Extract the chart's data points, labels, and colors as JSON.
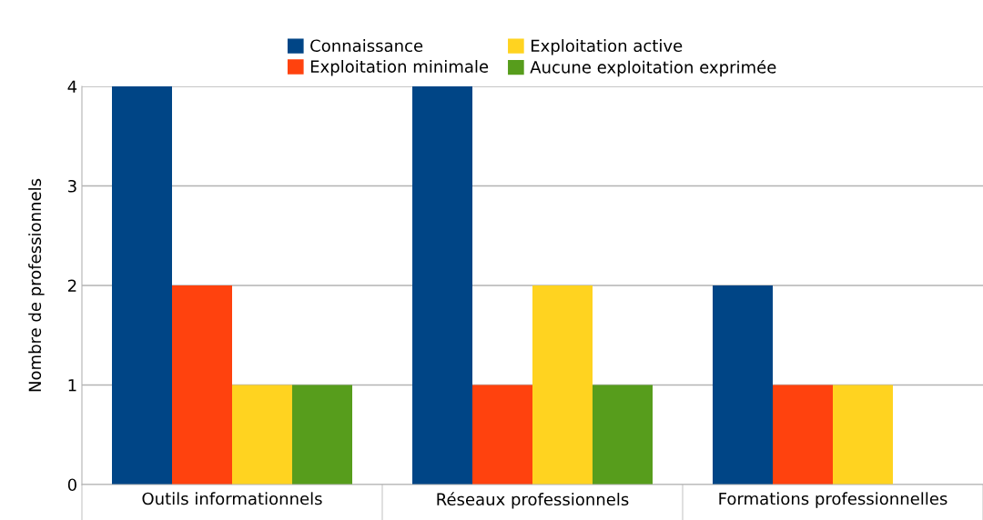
{
  "chart_data": {
    "type": "bar",
    "ylabel": "Nombre de professionnels",
    "categories": [
      "Outils informationnels",
      "Réseaux professionnels",
      "Formations professionnelles"
    ],
    "series": [
      {
        "name": "Connaissance",
        "color": "#004586",
        "values": [
          4,
          4,
          2
        ]
      },
      {
        "name": "Exploitation minimale",
        "color": "#ff420e",
        "values": [
          2,
          1,
          1
        ]
      },
      {
        "name": "Exploitation active",
        "color": "#ffd320",
        "values": [
          1,
          2,
          1
        ]
      },
      {
        "name": "Aucune exploitation exprimée",
        "color": "#579d1c",
        "values": [
          1,
          1,
          0
        ]
      }
    ],
    "ylim": [
      0,
      4
    ],
    "yticks": [
      0,
      1,
      2,
      3,
      4
    ],
    "grid": "y",
    "legend": "top"
  }
}
